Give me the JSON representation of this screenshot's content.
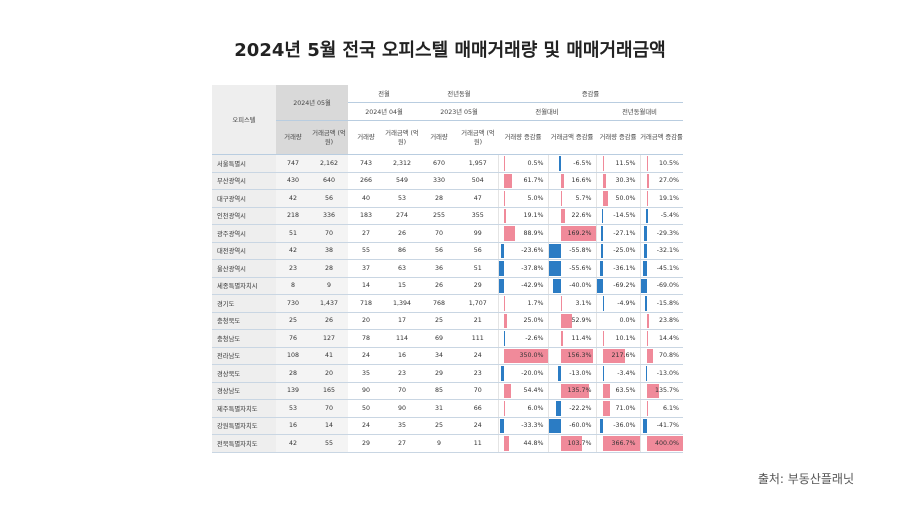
{
  "title": "2024년 5월 전국 오피스텔 매매거래량 및 매매거래금액",
  "table": {
    "corner": "오피스텔",
    "current": "2024년 05월",
    "prev_month": {
      "label": "전월",
      "period": "2024년 04월"
    },
    "prev_year": {
      "label": "전년동월",
      "period": "2023년 05월"
    },
    "change": {
      "label": "증감률",
      "mom": "전월대비",
      "yoy": "전년동월대비"
    },
    "columns": [
      "거래량",
      "거래금액 (억 원)",
      "거래량",
      "거래금액 (억 원)",
      "거래량",
      "거래금액 (억 원)",
      "거래량 증감률",
      "거래금액 증감률",
      "거래량 증감률",
      "거래금액 증감률"
    ],
    "rows": [
      [
        "서울특별시",
        "747",
        "2,162",
        "743",
        "2,312",
        "670",
        "1,957",
        "0.5%",
        "-6.5%",
        "11.5%",
        "10.5%"
      ],
      [
        "부산광역시",
        "430",
        "640",
        "266",
        "549",
        "330",
        "504",
        "61.7%",
        "16.6%",
        "30.3%",
        "27.0%"
      ],
      [
        "대구광역시",
        "42",
        "56",
        "40",
        "53",
        "28",
        "47",
        "5.0%",
        "5.7%",
        "50.0%",
        "19.1%"
      ],
      [
        "인천광역시",
        "218",
        "336",
        "183",
        "274",
        "255",
        "355",
        "19.1%",
        "22.6%",
        "-14.5%",
        "-5.4%"
      ],
      [
        "광주광역시",
        "51",
        "70",
        "27",
        "26",
        "70",
        "99",
        "88.9%",
        "169.2%",
        "-27.1%",
        "-29.3%"
      ],
      [
        "대전광역시",
        "42",
        "38",
        "55",
        "86",
        "56",
        "56",
        "-23.6%",
        "-55.8%",
        "-25.0%",
        "-32.1%"
      ],
      [
        "울산광역시",
        "23",
        "28",
        "37",
        "63",
        "36",
        "51",
        "-37.8%",
        "-55.6%",
        "-36.1%",
        "-45.1%"
      ],
      [
        "세종특별자치시",
        "8",
        "9",
        "14",
        "15",
        "26",
        "29",
        "-42.9%",
        "-40.0%",
        "-69.2%",
        "-69.0%"
      ],
      [
        "경기도",
        "730",
        "1,437",
        "718",
        "1,394",
        "768",
        "1,707",
        "1.7%",
        "3.1%",
        "-4.9%",
        "-15.8%"
      ],
      [
        "충청북도",
        "25",
        "26",
        "20",
        "17",
        "25",
        "21",
        "25.0%",
        "52.9%",
        "0.0%",
        "23.8%"
      ],
      [
        "충청남도",
        "76",
        "127",
        "78",
        "114",
        "69",
        "111",
        "-2.6%",
        "11.4%",
        "10.1%",
        "14.4%"
      ],
      [
        "전라남도",
        "108",
        "41",
        "24",
        "16",
        "34",
        "24",
        "350.0%",
        "156.3%",
        "217.6%",
        "70.8%"
      ],
      [
        "경상북도",
        "28",
        "20",
        "35",
        "23",
        "29",
        "23",
        "-20.0%",
        "-13.0%",
        "-3.4%",
        "-13.0%"
      ],
      [
        "경상남도",
        "139",
        "165",
        "90",
        "70",
        "85",
        "70",
        "54.4%",
        "135.7%",
        "63.5%",
        "135.7%"
      ],
      [
        "제주특별자치도",
        "53",
        "70",
        "50",
        "90",
        "31",
        "66",
        "6.0%",
        "-22.2%",
        "71.0%",
        "6.1%"
      ],
      [
        "강원특별자치도",
        "16",
        "14",
        "24",
        "35",
        "25",
        "24",
        "-33.3%",
        "-60.0%",
        "-36.0%",
        "-41.7%"
      ],
      [
        "전북특별자치도",
        "42",
        "55",
        "29",
        "27",
        "9",
        "11",
        "44.8%",
        "103.7%",
        "366.7%",
        "400.0%"
      ]
    ]
  },
  "source": "출처: 부동산플래닛"
}
